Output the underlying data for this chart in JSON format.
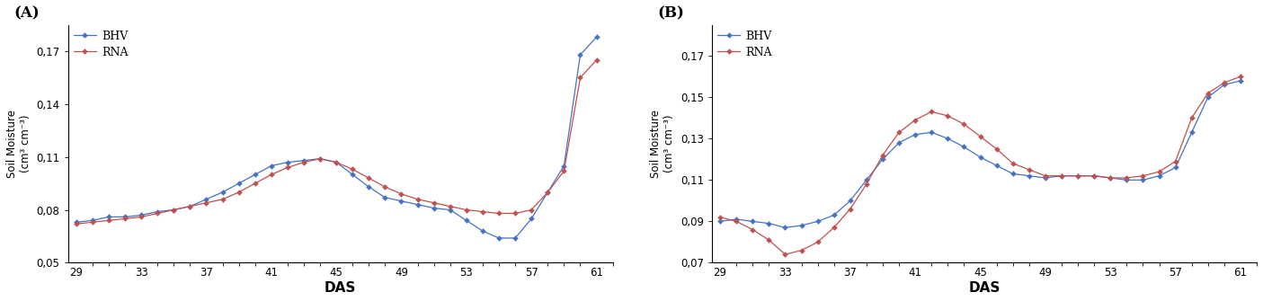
{
  "A": {
    "das": [
      29,
      30,
      31,
      32,
      33,
      34,
      35,
      36,
      37,
      38,
      39,
      40,
      41,
      42,
      43,
      44,
      45,
      46,
      47,
      48,
      49,
      50,
      51,
      52,
      53,
      54,
      55,
      56,
      57,
      58,
      59,
      60,
      61
    ],
    "BHV": [
      0.073,
      0.074,
      0.076,
      0.076,
      0.077,
      0.079,
      0.08,
      0.082,
      0.086,
      0.09,
      0.095,
      0.1,
      0.105,
      0.107,
      0.108,
      0.109,
      0.107,
      0.1,
      0.093,
      0.087,
      0.085,
      0.083,
      0.081,
      0.08,
      0.074,
      0.068,
      0.064,
      0.064,
      0.075,
      0.09,
      0.105,
      0.168,
      0.178
    ],
    "RNA": [
      0.072,
      0.073,
      0.074,
      0.075,
      0.076,
      0.078,
      0.08,
      0.082,
      0.084,
      0.086,
      0.09,
      0.095,
      0.1,
      0.104,
      0.107,
      0.109,
      0.107,
      0.103,
      0.098,
      0.093,
      0.089,
      0.086,
      0.084,
      0.082,
      0.08,
      0.079,
      0.078,
      0.078,
      0.08,
      0.09,
      0.102,
      0.155,
      0.165
    ],
    "ylim": [
      0.05,
      0.185
    ],
    "yticks": [
      0.05,
      0.08,
      0.11,
      0.14,
      0.17
    ],
    "ytick_labels": [
      "0,05",
      "0,08",
      "0,11",
      "0,14",
      "0,17"
    ]
  },
  "B": {
    "das": [
      29,
      30,
      31,
      32,
      33,
      34,
      35,
      36,
      37,
      38,
      39,
      40,
      41,
      42,
      43,
      44,
      45,
      46,
      47,
      48,
      49,
      50,
      51,
      52,
      53,
      54,
      55,
      56,
      57,
      58,
      59,
      60,
      61
    ],
    "BHV": [
      0.09,
      0.091,
      0.09,
      0.089,
      0.087,
      0.088,
      0.09,
      0.093,
      0.1,
      0.11,
      0.12,
      0.128,
      0.132,
      0.133,
      0.13,
      0.126,
      0.121,
      0.117,
      0.113,
      0.112,
      0.111,
      0.112,
      0.112,
      0.112,
      0.111,
      0.11,
      0.11,
      0.112,
      0.116,
      0.133,
      0.15,
      0.156,
      0.158
    ],
    "RNA": [
      0.092,
      0.09,
      0.086,
      0.081,
      0.074,
      0.076,
      0.08,
      0.087,
      0.096,
      0.108,
      0.122,
      0.133,
      0.139,
      0.143,
      0.141,
      0.137,
      0.131,
      0.125,
      0.118,
      0.115,
      0.112,
      0.112,
      0.112,
      0.112,
      0.111,
      0.111,
      0.112,
      0.114,
      0.119,
      0.14,
      0.152,
      0.157,
      0.16
    ],
    "ylim": [
      0.07,
      0.185
    ],
    "yticks": [
      0.07,
      0.09,
      0.11,
      0.13,
      0.15,
      0.17
    ],
    "ytick_labels": [
      "0,07",
      "0,09",
      "0,11",
      "0,13",
      "0,15",
      "0,17"
    ]
  },
  "xticks": [
    29,
    33,
    37,
    41,
    45,
    49,
    53,
    57,
    61
  ],
  "xlabel": "DAS",
  "ylabel_line1": "Soil Moisture",
  "ylabel_line2": "(cm³ cm⁻³)",
  "bhv_color": "#4472C4",
  "rna_color": "#C0504D",
  "panel_labels": [
    "(A)",
    "(B)"
  ],
  "figsize": [
    14.05,
    3.35
  ],
  "dpi": 100
}
